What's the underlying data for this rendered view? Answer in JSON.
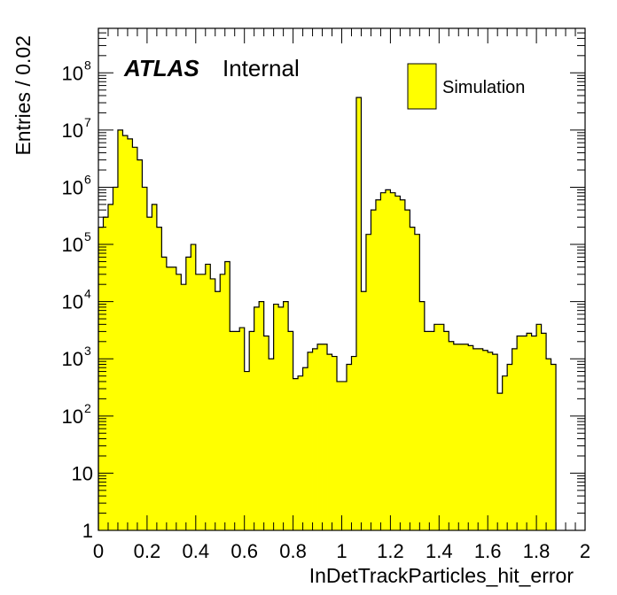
{
  "chart_data": {
    "type": "bar",
    "histogram": true,
    "xlabel": "InDetTrackParticles_hit_error",
    "ylabel": "Entries / 0.02",
    "xlim": [
      0,
      2
    ],
    "ylim": [
      1,
      600000000
    ],
    "yscale": "log",
    "bin_width": 0.02,
    "x_ticks": [
      {
        "value": 0,
        "label": "0"
      },
      {
        "value": 0.2,
        "label": "0.2"
      },
      {
        "value": 0.4,
        "label": "0.4"
      },
      {
        "value": 0.6,
        "label": "0.6"
      },
      {
        "value": 0.8,
        "label": "0.8"
      },
      {
        "value": 1.0,
        "label": "1"
      },
      {
        "value": 1.2,
        "label": "1.2"
      },
      {
        "value": 1.4,
        "label": "1.4"
      },
      {
        "value": 1.6,
        "label": "1.6"
      },
      {
        "value": 1.8,
        "label": "1.8"
      },
      {
        "value": 2.0,
        "label": "2"
      }
    ],
    "y_ticks": [
      {
        "value": 1,
        "label": "1"
      },
      {
        "value": 10,
        "label": "10"
      },
      {
        "value": 100,
        "label": "10",
        "exp": "2"
      },
      {
        "value": 1000,
        "label": "10",
        "exp": "3"
      },
      {
        "value": 10000,
        "label": "10",
        "exp": "4"
      },
      {
        "value": 100000,
        "label": "10",
        "exp": "5"
      },
      {
        "value": 1000000,
        "label": "10",
        "exp": "6"
      },
      {
        "value": 10000000,
        "label": "10",
        "exp": "7"
      },
      {
        "value": 100000000,
        "label": "10",
        "exp": "8"
      }
    ],
    "values": [
      200000,
      300000,
      500000,
      1000000,
      10000000,
      8000000,
      7000000,
      5000000,
      3000000,
      1000000,
      300000,
      500000,
      200000,
      60000,
      40000,
      40000,
      30000,
      20000,
      60000,
      100000,
      30000,
      30000,
      45000,
      25000,
      15000,
      30000,
      50000,
      3000,
      3000,
      3500,
      600,
      3000,
      8000,
      10000,
      2500,
      1000,
      9000,
      8000,
      10000,
      3000,
      450,
      500,
      700,
      1300,
      1500,
      1800,
      1800,
      1200,
      1100,
      400,
      400,
      800,
      1100,
      37000000,
      15000,
      150000,
      400000,
      600000,
      800000,
      900000,
      800000,
      700000,
      600000,
      400000,
      200000,
      150000,
      10000,
      3000,
      3000,
      4000,
      4000,
      3000,
      2000,
      1800,
      1800,
      1800,
      1700,
      1500,
      1500,
      1400,
      1300,
      1200,
      250,
      500,
      800,
      1500,
      2500,
      2500,
      2800,
      2500,
      4000,
      2800,
      1000,
      800
    ],
    "fill_color": "#ffff00",
    "line_color": "#000000",
    "legend": [
      {
        "label": "Simulation",
        "color": "#ffff00"
      }
    ],
    "legend_position": "top-right",
    "annotation": {
      "bold": "ATLAS",
      "text": "Internal"
    }
  }
}
